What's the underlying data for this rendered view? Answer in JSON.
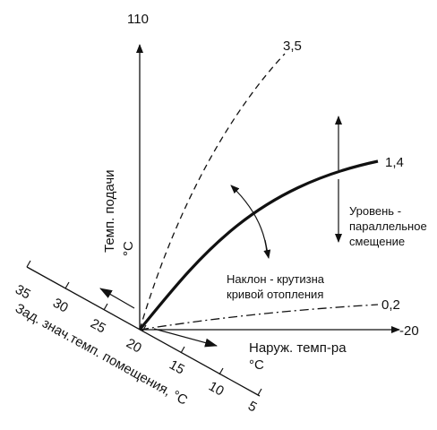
{
  "diagram": {
    "y_axis": {
      "max_label": "110",
      "label": "Темп. подачи",
      "unit": "°C"
    },
    "x_axis": {
      "end_label": "-20",
      "label": "Наруж. темп-ра",
      "unit": "°C"
    },
    "room_axis": {
      "label": "Зад. знач.темп. помещения, °C",
      "ticks": [
        "35",
        "30",
        "25",
        "20",
        "15",
        "10",
        "5"
      ]
    },
    "curves": [
      {
        "label": "3,5",
        "style": "dashed"
      },
      {
        "label": "1,4",
        "style": "solid-bold"
      },
      {
        "label": "0,2",
        "style": "dash-dot"
      }
    ],
    "annotations": {
      "slope_line1": "Наклон - крутизна",
      "slope_line2": "кривой отопления",
      "level_line1": "Уровень -",
      "level_line2": "параллельное",
      "level_line3": "смещение"
    },
    "colors": {
      "ink": "#111111",
      "background": "#ffffff"
    }
  }
}
